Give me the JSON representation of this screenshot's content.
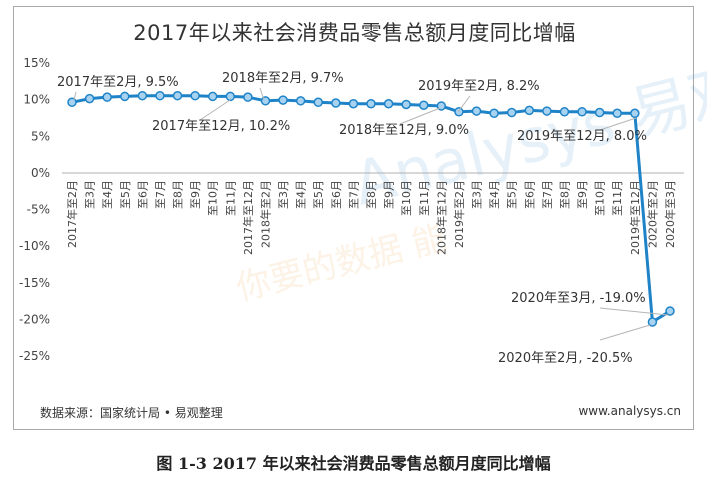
{
  "chart_data": {
    "type": "line",
    "title": "2017年以来社会消费品零售总额月度同比增幅",
    "xlabel": "",
    "ylabel": "",
    "ylim": [
      -25,
      15
    ],
    "y_ticks": [
      15,
      10,
      5,
      0,
      -5,
      -10,
      -15,
      -20,
      -25
    ],
    "y_tick_labels": [
      "15%",
      "10%",
      "5%",
      "0%",
      "-5%",
      "-10%",
      "-15%",
      "-20%",
      "-25%"
    ],
    "grid": false,
    "legend": "none",
    "categories": [
      "2017年至2月",
      "至3月",
      "至4月",
      "至5月",
      "至6月",
      "至7月",
      "至8月",
      "至9月",
      "至10月",
      "至11月",
      "2017年至12月",
      "2018年至2月",
      "至3月",
      "至4月",
      "至5月",
      "至6月",
      "至7月",
      "至8月",
      "至9月",
      "至10月",
      "至11月",
      "2018年至12月",
      "2019年至2月",
      "至3月",
      "至4月",
      "至5月",
      "至6月",
      "至7月",
      "至8月",
      "至9月",
      "至10月",
      "至11月",
      "2019年至12月",
      "2020年至2月",
      "2020年至3月"
    ],
    "series": [
      {
        "values": [
          9.5,
          10.0,
          10.2,
          10.3,
          10.4,
          10.4,
          10.4,
          10.4,
          10.3,
          10.3,
          10.2,
          9.7,
          9.8,
          9.7,
          9.5,
          9.4,
          9.3,
          9.3,
          9.3,
          9.2,
          9.1,
          9.0,
          8.2,
          8.3,
          8.0,
          8.1,
          8.4,
          8.3,
          8.2,
          8.2,
          8.1,
          8.0,
          8.0,
          -20.5,
          -19.0
        ]
      }
    ],
    "annotations": [
      {
        "index": 0,
        "text": "2017年至2月, 9.5%"
      },
      {
        "index": 10,
        "text": "2017年至12月, 10.2%"
      },
      {
        "index": 11,
        "text": "2018年至2月, 9.7%"
      },
      {
        "index": 21,
        "text": "2018年至12月, 9.0%"
      },
      {
        "index": 22,
        "text": "2019年至2月, 8.2%"
      },
      {
        "index": 32,
        "text": "2019年至12月, 8.0%"
      },
      {
        "index": 33,
        "text": "2020年至2月, -20.5%"
      },
      {
        "index": 34,
        "text": "2020年至3月, -19.0%"
      }
    ],
    "colors": {
      "line": "#1f83c8",
      "marker_fill": "#a8d3f0",
      "axis": "#b0b0b0"
    }
  },
  "source_note": "数据来源：国家统计局 • 易观整理",
  "site": "www.analysys.cn",
  "caption": "图 1-3  2017 年以来社会消费品零售总额月度同比增幅",
  "watermark": {
    "brand": "Analysys 易观",
    "slogan": "你要的数据 能"
  }
}
